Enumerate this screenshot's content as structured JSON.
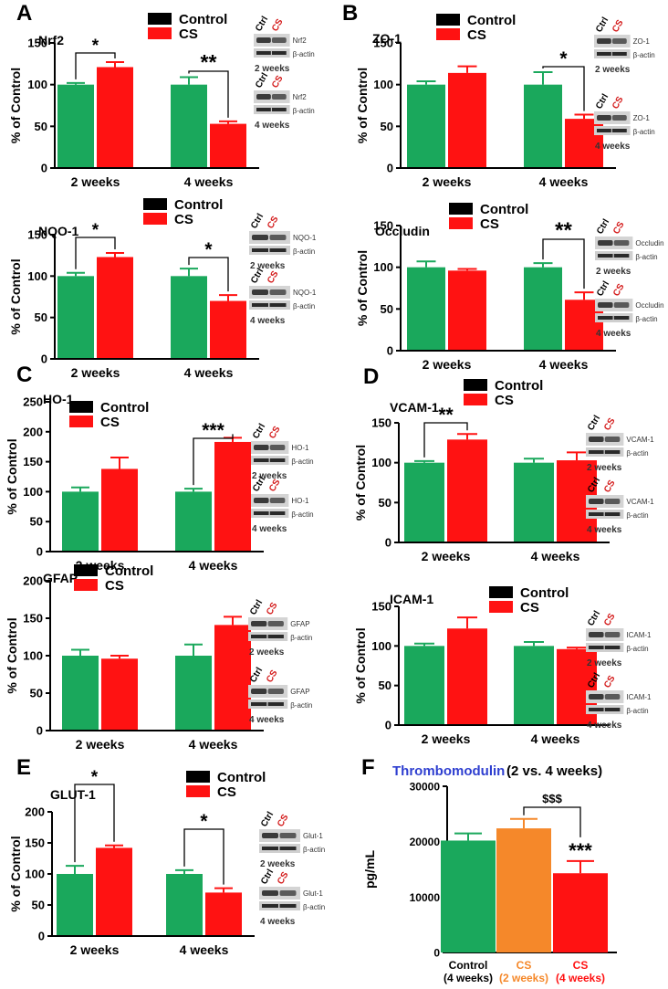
{
  "colors": {
    "control": "#1aa85c",
    "cs": "#ff1212",
    "cs2": "#f5882a",
    "legend_control": "#000000",
    "title_blue": "#2f3fd0",
    "cs_label": "#d41c1c",
    "blot_text": "#333333"
  },
  "legend": {
    "control": "Control",
    "cs": "CS"
  },
  "blot_labels": {
    "ctrl": "Ctrl",
    "cs": "CS",
    "actin": "β-actin",
    "wk2": "2 weeks",
    "wk4": "4 weeks"
  },
  "chart_data": [
    {
      "panel": "A",
      "title": "Nrf2",
      "type": "bar",
      "ylabel": "% of Control",
      "ylim": [
        0,
        150
      ],
      "yticks": [
        "0",
        "50",
        "100",
        "150"
      ],
      "categories": [
        "2 weeks",
        "4 weeks"
      ],
      "series": [
        {
          "name": "Control",
          "values": [
            100,
            100
          ],
          "errors": [
            2,
            9
          ]
        },
        {
          "name": "CS",
          "values": [
            121,
            53
          ],
          "errors": [
            6,
            3
          ]
        }
      ],
      "significance": [
        "*",
        "**"
      ],
      "protein": "Nrf2"
    },
    {
      "panel": "",
      "title": "NQO-1",
      "type": "bar",
      "ylabel": "% of Control",
      "ylim": [
        0,
        150
      ],
      "yticks": [
        "0",
        "50",
        "100",
        "150"
      ],
      "categories": [
        "2 weeks",
        "4 weeks"
      ],
      "series": [
        {
          "name": "Control",
          "values": [
            100,
            100
          ],
          "errors": [
            4,
            9
          ]
        },
        {
          "name": "CS",
          "values": [
            123,
            70
          ],
          "errors": [
            5,
            7
          ]
        }
      ],
      "significance": [
        "*",
        "*"
      ],
      "protein": "NQO-1"
    },
    {
      "panel": "B",
      "title": "ZO-1",
      "type": "bar",
      "ylabel": "% of Control",
      "ylim": [
        0,
        150
      ],
      "yticks": [
        "0",
        "50",
        "100",
        "150"
      ],
      "categories": [
        "2 weeks",
        "4 weeks"
      ],
      "series": [
        {
          "name": "Control",
          "values": [
            100,
            100
          ],
          "errors": [
            4,
            15
          ]
        },
        {
          "name": "CS",
          "values": [
            114,
            59
          ],
          "errors": [
            8,
            5
          ]
        }
      ],
      "significance": [
        "",
        "*"
      ],
      "protein": "ZO-1"
    },
    {
      "panel": "",
      "title": "Occludin",
      "type": "bar",
      "ylabel": "% of Control",
      "ylim": [
        0,
        150
      ],
      "yticks": [
        "0",
        "50",
        "100",
        "150"
      ],
      "categories": [
        "2 weeks",
        "4 weeks"
      ],
      "series": [
        {
          "name": "Control",
          "values": [
            100,
            100
          ],
          "errors": [
            7,
            5
          ]
        },
        {
          "name": "CS",
          "values": [
            96,
            61
          ],
          "errors": [
            2,
            9
          ]
        }
      ],
      "significance": [
        "",
        "**"
      ],
      "protein": "Occludin"
    },
    {
      "panel": "C",
      "title": "HO-1",
      "type": "bar",
      "ylabel": "% of Control",
      "ylim": [
        0,
        250
      ],
      "yticks": [
        "0",
        "50",
        "100",
        "150",
        "200",
        "250"
      ],
      "categories": [
        "2 weeks",
        "4 weeks"
      ],
      "series": [
        {
          "name": "Control",
          "values": [
            100,
            100
          ],
          "errors": [
            7,
            5
          ]
        },
        {
          "name": "CS",
          "values": [
            138,
            183
          ],
          "errors": [
            19,
            7
          ]
        }
      ],
      "significance": [
        "",
        "***"
      ],
      "protein": "HO-1"
    },
    {
      "panel": "",
      "title": "GFAP",
      "type": "bar",
      "ylabel": "% of Control",
      "ylim": [
        0,
        200
      ],
      "yticks": [
        "0",
        "50",
        "100",
        "150",
        "200"
      ],
      "categories": [
        "2 weeks",
        "4 weeks"
      ],
      "series": [
        {
          "name": "Control",
          "values": [
            100,
            100
          ],
          "errors": [
            8,
            15
          ]
        },
        {
          "name": "CS",
          "values": [
            96,
            141
          ],
          "errors": [
            4,
            11
          ]
        }
      ],
      "significance": [
        "",
        ""
      ],
      "protein": "GFAP"
    },
    {
      "panel": "D",
      "title": "VCAM-1",
      "type": "bar",
      "ylabel": "% of Control",
      "ylim": [
        0,
        150
      ],
      "yticks": [
        "0",
        "50",
        "100",
        "150"
      ],
      "categories": [
        "2 weeks",
        "4 weeks"
      ],
      "series": [
        {
          "name": "Control",
          "values": [
            100,
            100
          ],
          "errors": [
            2,
            5
          ]
        },
        {
          "name": "CS",
          "values": [
            129,
            103
          ],
          "errors": [
            7,
            10
          ]
        }
      ],
      "significance": [
        "**",
        ""
      ],
      "protein": "VCAM-1"
    },
    {
      "panel": "",
      "title": "ICAM-1",
      "type": "bar",
      "ylabel": "% of Control",
      "ylim": [
        0,
        150
      ],
      "yticks": [
        "0",
        "50",
        "100",
        "150"
      ],
      "categories": [
        "2 weeks",
        "4 weeks"
      ],
      "series": [
        {
          "name": "Control",
          "values": [
            100,
            100
          ],
          "errors": [
            3,
            5
          ]
        },
        {
          "name": "CS",
          "values": [
            122,
            96
          ],
          "errors": [
            14,
            2
          ]
        }
      ],
      "significance": [
        "",
        ""
      ],
      "protein": "ICAM-1"
    },
    {
      "panel": "E",
      "title": "GLUT-1",
      "type": "bar",
      "ylabel": "% of Control",
      "ylim": [
        0,
        200
      ],
      "yticks": [
        "0",
        "50",
        "100",
        "150",
        "200"
      ],
      "categories": [
        "2 weeks",
        "4 weeks"
      ],
      "series": [
        {
          "name": "Control",
          "values": [
            100,
            100
          ],
          "errors": [
            13,
            6
          ]
        },
        {
          "name": "CS",
          "values": [
            142,
            70
          ],
          "errors": [
            4,
            7
          ]
        }
      ],
      "significance": [
        "*",
        "*"
      ],
      "protein": "Glut-1"
    },
    {
      "panel": "F",
      "title": "Thrombomodulin",
      "title_suffix": "(2 vs. 4 weeks)",
      "type": "bar",
      "ylabel": "pg/mL",
      "ylim": [
        0,
        30000
      ],
      "yticks": [
        "0",
        "10000",
        "20000",
        "30000"
      ],
      "categories": [
        [
          "Control",
          "(4 weeks)"
        ],
        [
          "CS",
          "(2 weeks)"
        ],
        [
          "CS",
          "(4 weeks)"
        ]
      ],
      "values": [
        20200,
        22400,
        14300
      ],
      "errors": [
        1300,
        1700,
        2200
      ],
      "significance_top": "$$$",
      "significance_bar": "***"
    }
  ]
}
